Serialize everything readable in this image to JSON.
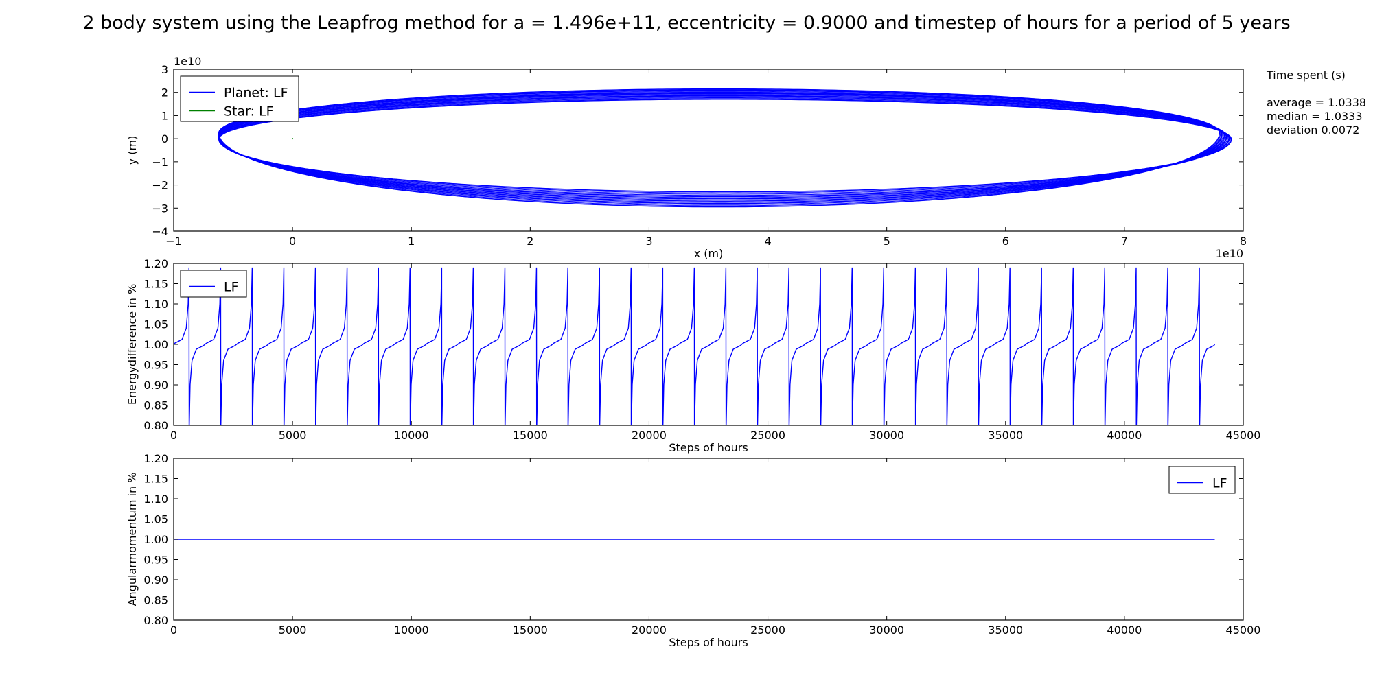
{
  "title": "2 body system using the Leapfrog method for a = 1.496e+11, eccentricity = 0.9000 and timestep of hours for a period of 5 years",
  "side_text": {
    "heading": "Time spent (s)",
    "average": "average = 1.0338",
    "median": "median = 1.0333",
    "deviation": "deviation 0.0072"
  },
  "colors": {
    "planet": "#0000ff",
    "star": "#008000"
  },
  "chart_data": [
    {
      "type": "line",
      "xlabel": "x (m)",
      "ylabel": "y (m)",
      "x_offset_label": "1e10",
      "y_offset_label": "1e10",
      "xlim": [
        -1,
        8
      ],
      "ylim": [
        -4,
        3
      ],
      "x_ticks": [
        -1,
        0,
        1,
        2,
        3,
        4,
        5,
        6,
        7,
        8
      ],
      "y_ticks": [
        -4,
        -3,
        -2,
        -1,
        0,
        1,
        2,
        3
      ],
      "x_tick_labels": [
        "−1",
        "0",
        "1",
        "2",
        "3",
        "4",
        "5",
        "6",
        "7",
        "8"
      ],
      "y_tick_labels": [
        "−4",
        "−3",
        "−2",
        "−1",
        "0",
        "1",
        "2",
        "3"
      ],
      "legend_position": "upper-left",
      "series": [
        {
          "name": "Planet: LF",
          "color": "#0000ff",
          "orbits": [
            {
              "perihelion": [
                -0.62,
                -0.05
              ],
              "aphelion": [
                7.9,
                0.0
              ],
              "y_max": 1.7,
              "y_min": -2.3
            },
            {
              "perihelion": [
                -0.62,
                -0.1
              ],
              "aphelion": [
                7.88,
                0.15
              ],
              "y_max": 1.85,
              "y_min": -2.5
            },
            {
              "perihelion": [
                -0.62,
                -0.12
              ],
              "aphelion": [
                7.86,
                0.3
              ],
              "y_max": 1.95,
              "y_min": -2.6
            },
            {
              "perihelion": [
                -0.62,
                -0.15
              ],
              "aphelion": [
                7.84,
                0.45
              ],
              "y_max": 2.0,
              "y_min": -2.7
            },
            {
              "perihelion": [
                -0.62,
                -0.18
              ],
              "aphelion": [
                7.82,
                0.55
              ],
              "y_max": 2.1,
              "y_min": -2.8
            },
            {
              "perihelion": [
                -0.62,
                -0.2
              ],
              "aphelion": [
                7.8,
                0.7
              ],
              "y_max": 2.15,
              "y_min": -2.95
            }
          ]
        },
        {
          "name": "Star: LF",
          "color": "#008000",
          "points": [
            [
              0,
              0
            ]
          ]
        }
      ]
    },
    {
      "type": "line",
      "xlabel": "Steps of hours",
      "ylabel": "Energydifference in %",
      "xlim": [
        0,
        45000
      ],
      "ylim": [
        0.8,
        1.2
      ],
      "x_ticks": [
        0,
        5000,
        10000,
        15000,
        20000,
        25000,
        30000,
        35000,
        40000,
        45000
      ],
      "y_ticks": [
        0.8,
        0.85,
        0.9,
        0.95,
        1.0,
        1.05,
        1.1,
        1.15,
        1.2
      ],
      "x_tick_labels": [
        "0",
        "5000",
        "10000",
        "15000",
        "20000",
        "25000",
        "30000",
        "35000",
        "40000",
        "45000"
      ],
      "y_tick_labels": [
        "0.80",
        "0.85",
        "0.90",
        "0.95",
        "1.00",
        "1.05",
        "1.10",
        "1.15",
        "1.20"
      ],
      "legend_position": "upper-left",
      "series": [
        {
          "name": "LF",
          "color": "#0000ff",
          "baseline": 1.0,
          "x_end": 43800,
          "spike_positions": [
            650,
            1980,
            3310,
            4640,
            5970,
            7300,
            8620,
            9950,
            11280,
            12610,
            13940,
            15270,
            16590,
            17920,
            19250,
            20580,
            21910,
            23240,
            24560,
            25890,
            27220,
            28550,
            29880,
            31210,
            32530,
            33860,
            35190,
            36520,
            37850,
            39180,
            40500,
            41830,
            43160
          ]
        }
      ]
    },
    {
      "type": "line",
      "xlabel": "Steps of hours",
      "ylabel": "Angularmomentum in  %",
      "xlim": [
        0,
        45000
      ],
      "ylim": [
        0.8,
        1.2
      ],
      "x_ticks": [
        0,
        5000,
        10000,
        15000,
        20000,
        25000,
        30000,
        35000,
        40000,
        45000
      ],
      "y_ticks": [
        0.8,
        0.85,
        0.9,
        0.95,
        1.0,
        1.05,
        1.1,
        1.15,
        1.2
      ],
      "x_tick_labels": [
        "0",
        "5000",
        "10000",
        "15000",
        "20000",
        "25000",
        "30000",
        "35000",
        "40000",
        "45000"
      ],
      "y_tick_labels": [
        "0.80",
        "0.85",
        "0.90",
        "0.95",
        "1.00",
        "1.05",
        "1.10",
        "1.15",
        "1.20"
      ],
      "legend_position": "upper-right",
      "series": [
        {
          "name": "LF",
          "color": "#0000ff",
          "x": [
            0,
            43800
          ],
          "y": [
            1.0,
            1.0
          ]
        }
      ]
    }
  ]
}
